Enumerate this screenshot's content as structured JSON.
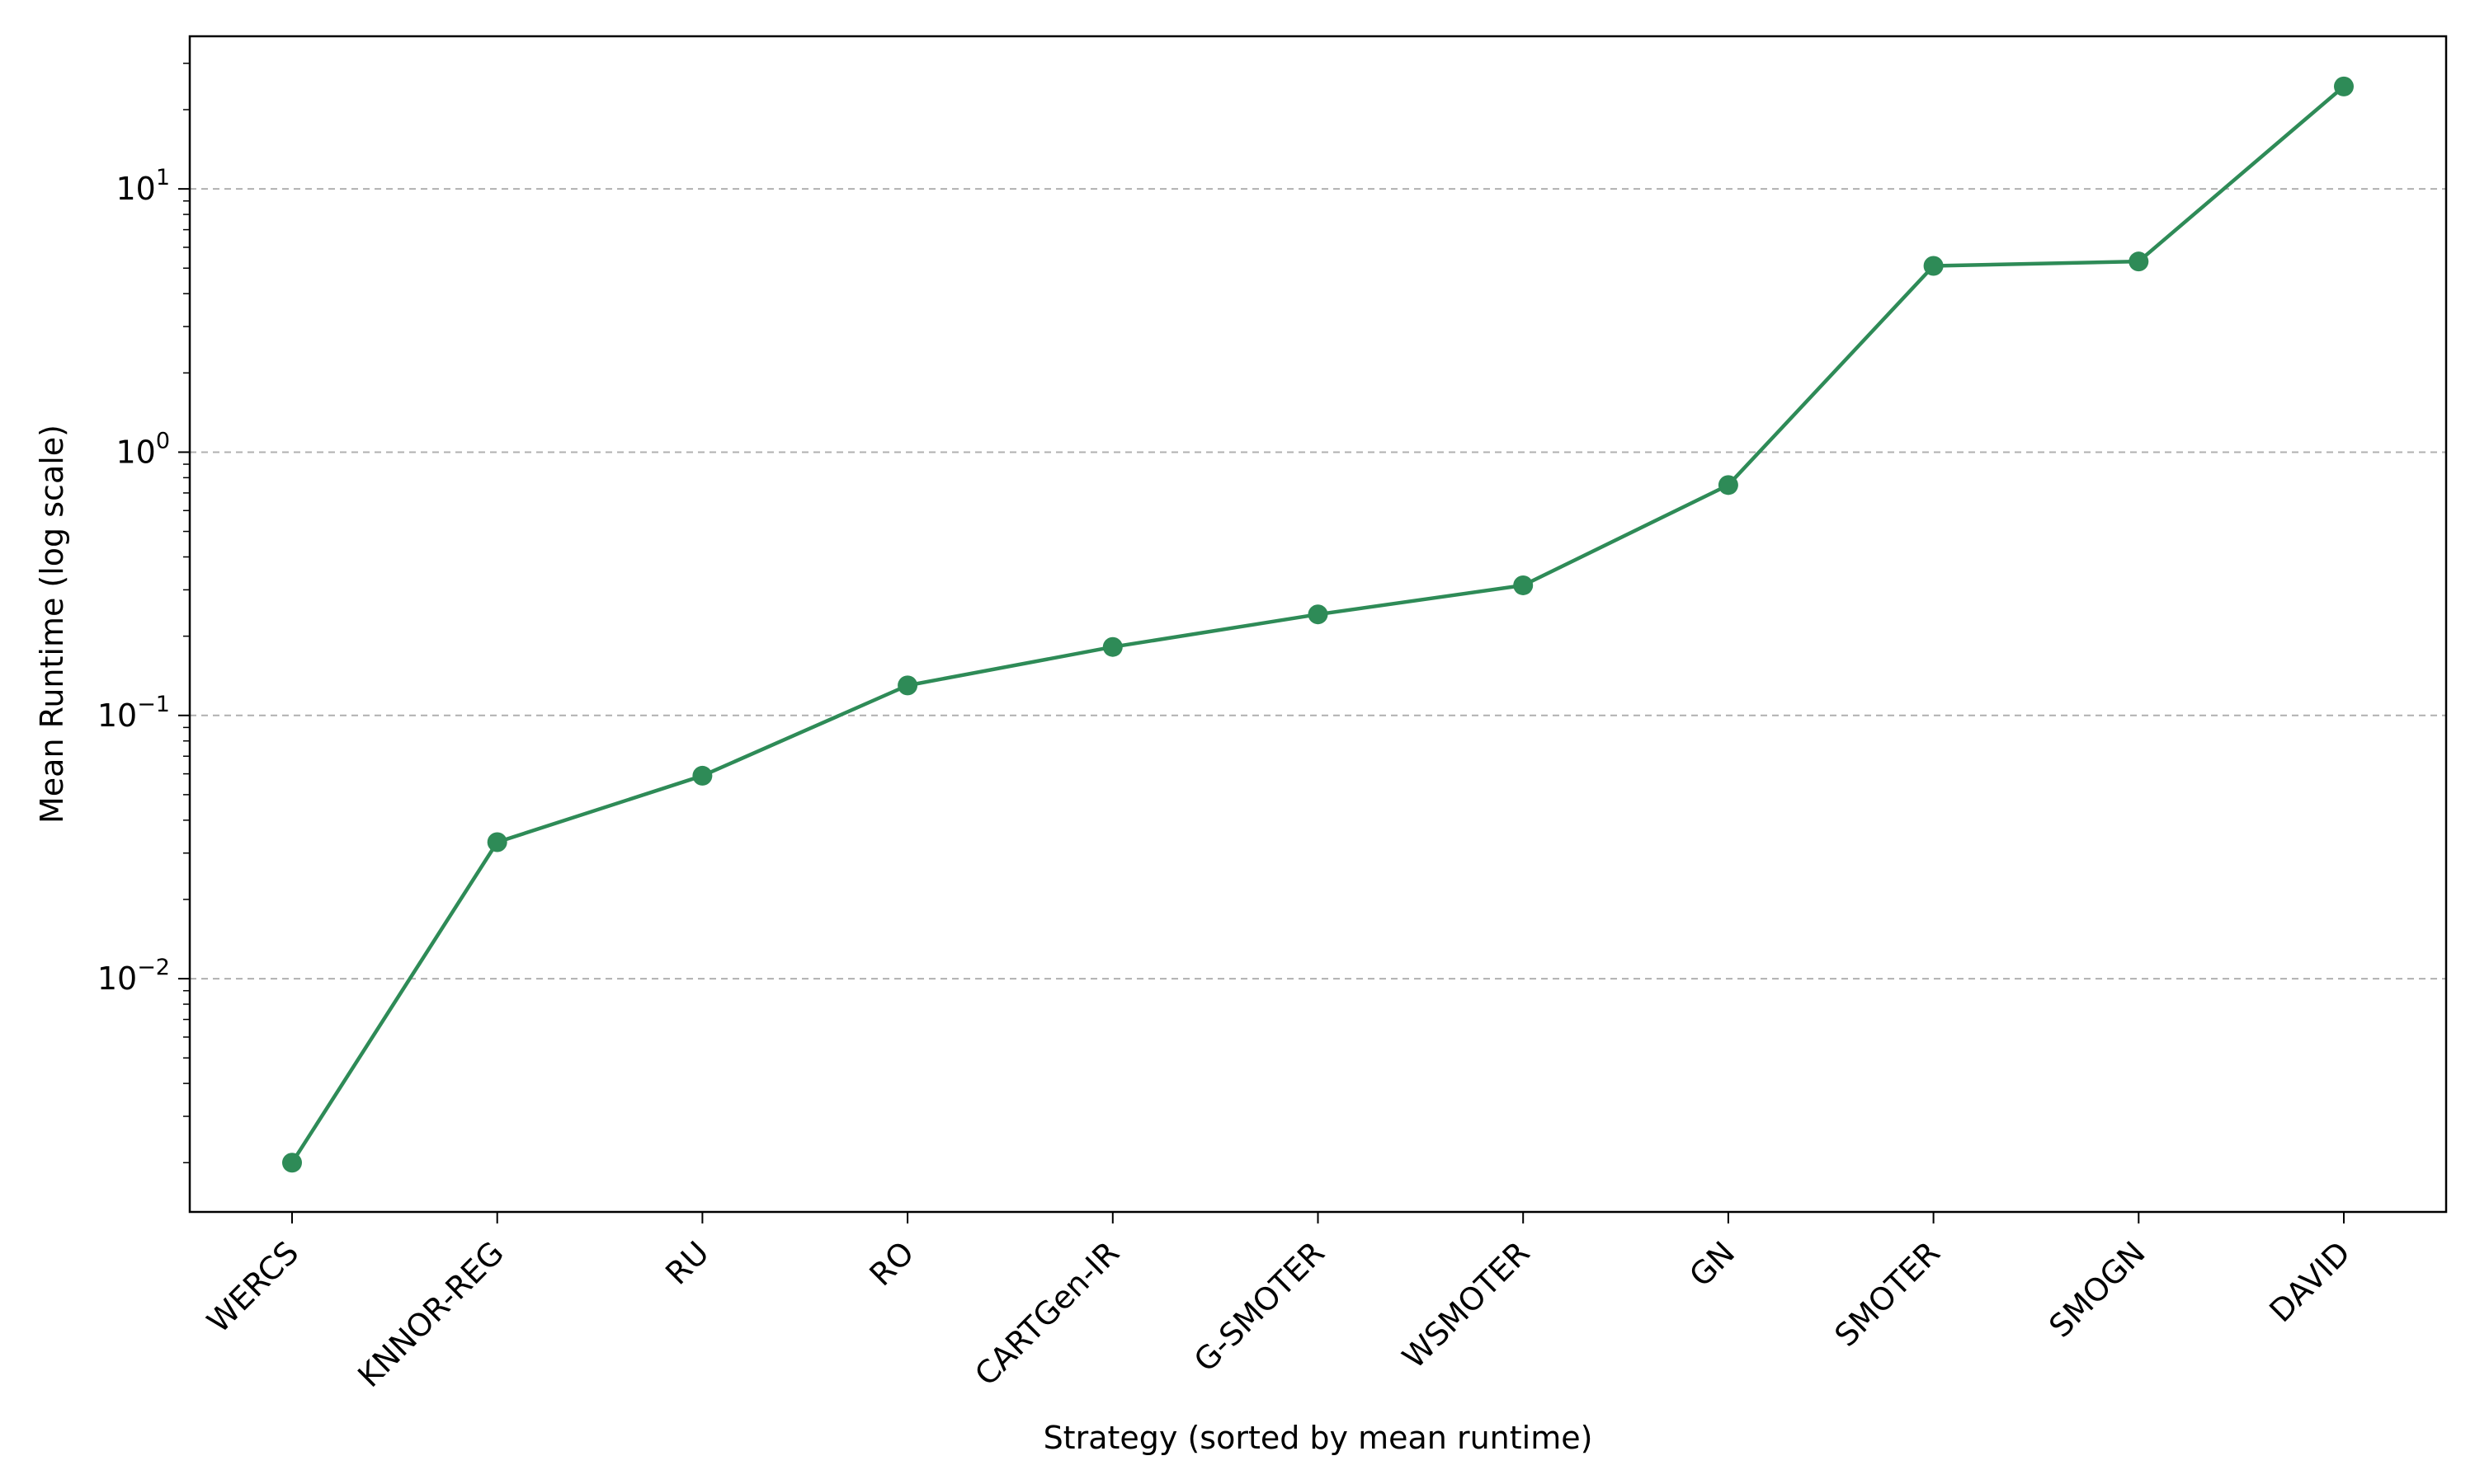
{
  "chart_data": {
    "type": "line",
    "title": "",
    "xlabel": "Strategy (sorted by mean runtime)",
    "ylabel": "Mean Runtime (log scale)",
    "yscale": "log",
    "ylim": [
      0.0013,
      38
    ],
    "y_ticks": [
      {
        "value": 0.01,
        "base": "10",
        "exp": "−2"
      },
      {
        "value": 0.1,
        "base": "10",
        "exp": "−1"
      },
      {
        "value": 1,
        "base": "10",
        "exp": "0"
      },
      {
        "value": 10,
        "base": "10",
        "exp": "1"
      }
    ],
    "grid": "y-major dashed",
    "legend": "none",
    "categories": [
      "WERCS",
      "KNNOR-REG",
      "RU",
      "RO",
      "CARTGen-IR",
      "G-SMOTER",
      "WSMOTER",
      "GN",
      "SMOTER",
      "SMOGN",
      "DAVID"
    ],
    "series": [
      {
        "values": [
          0.002,
          0.033,
          0.059,
          0.13,
          0.182,
          0.242,
          0.312,
          0.75,
          5.1,
          5.3,
          24.5
        ],
        "color": "#2e8b57"
      }
    ]
  }
}
